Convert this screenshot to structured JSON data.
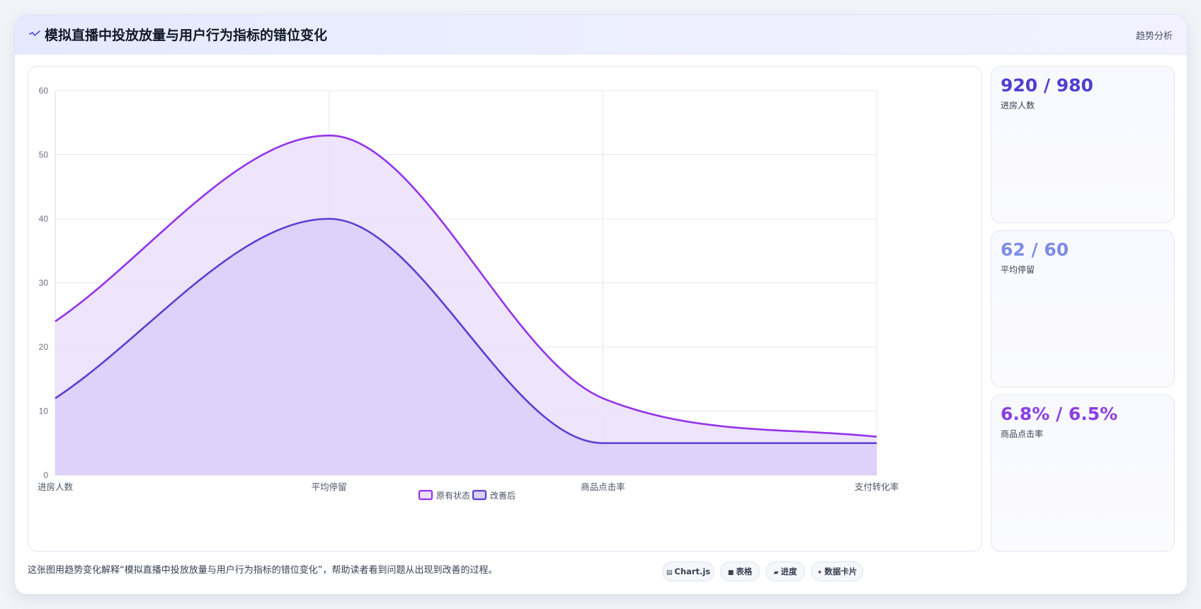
{
  "header": {
    "icon": "trend-line-icon",
    "title": "模拟直播中投放放量与用户行为指标的错位变化",
    "trend_label": "趋势分析"
  },
  "colors": {
    "series_original": "#9333ea",
    "series_original_fill": "#ede2fb",
    "series_improved": "#5a3fd2",
    "series_improved_fill": "#dccffa",
    "stat1": "#4f3fd0",
    "stat2": "#7d8ce6",
    "stat3": "#8b3fe0"
  },
  "chart_data": {
    "type": "area",
    "categories": [
      "进房人数",
      "平均停留",
      "商品点击率",
      "支付转化率"
    ],
    "series": [
      {
        "name": "原有状态",
        "values": [
          24,
          53,
          12,
          6
        ]
      },
      {
        "name": "改善后",
        "values": [
          12,
          40,
          5,
          5
        ]
      }
    ],
    "ylim": [
      0,
      60
    ],
    "yticks": [
      0,
      10,
      20,
      30,
      40,
      50,
      60
    ],
    "grid": true,
    "legend_position": "bottom"
  },
  "stats": [
    {
      "value": "920 / 980",
      "label": "进房人数"
    },
    {
      "value": "62 / 60",
      "label": "平均停留"
    },
    {
      "value": "6.8% / 6.5%",
      "label": "商品点击率"
    }
  ],
  "footer": {
    "text": "这张图用趋势变化解释“模拟直播中投放放量与用户行为指标的错位变化”，帮助读者看到问题从出现到改善的过程。",
    "chips": [
      {
        "icon": "chart-icon",
        "label": "Chart.js"
      },
      {
        "icon": "table-icon",
        "label": "表格"
      },
      {
        "icon": "progress-icon",
        "label": "进度"
      },
      {
        "icon": "sparkle-icon",
        "label": "数据卡片"
      }
    ]
  }
}
